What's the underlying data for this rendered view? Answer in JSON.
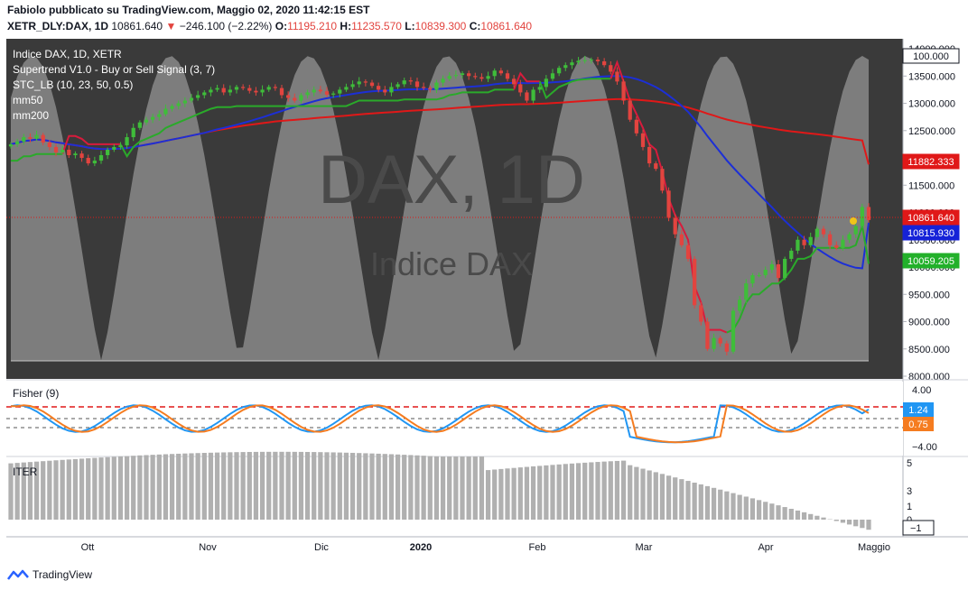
{
  "header": {
    "publish_line": "Fabiolo pubblicato su TradingView.com, Maggio 02, 2020 11:42:15 EST",
    "symbol": "XETR_DLY:DAX, 1D",
    "last": "10861.640",
    "change_arrow": "▼",
    "change": "−246.100 (−2.22%)",
    "o_label": "O:",
    "o_value": "11195.210",
    "h_label": "H:",
    "h_value": "11235.570",
    "l_label": "L:",
    "l_value": "10839.300",
    "c_label": "C:",
    "c_value": "10861.640"
  },
  "legend": {
    "title": "Indice DAX, 1D, XETR",
    "indicators": [
      "Supertrend V1.0 - Buy or Sell Signal (3, 7)",
      "STC_LB (10, 23, 50, 0.5)",
      "mm50",
      "mm200"
    ]
  },
  "watermark": {
    "big": "DAX, 1D",
    "small": "Indice DAX"
  },
  "price_axis": {
    "ticks": [
      "14000.000",
      "13500.000",
      "13000.000",
      "12500.000",
      "12000.000",
      "11500.000",
      "11000.000",
      "10500.000",
      "10000.000",
      "9500.000",
      "9000.000",
      "8500.000",
      "8000.000"
    ]
  },
  "price_badges": [
    {
      "label": "100.000",
      "color": "#ffffff",
      "text_color": "#131722"
    },
    {
      "label": "11882.333",
      "color": "#e01818",
      "text_color": "#ffffff"
    },
    {
      "label": "10861.640",
      "color": "#e01818",
      "text_color": "#ffffff"
    },
    {
      "label": "10815.930",
      "color": "#1522d8",
      "text_color": "#ffffff"
    },
    {
      "label": "10059.205",
      "color": "#22b02a",
      "text_color": "#ffffff"
    }
  ],
  "fisher": {
    "title": "Fisher (9)",
    "ticks": [
      "4.00",
      "−4.00"
    ],
    "badges": [
      {
        "label": "1.24",
        "color": "#2196f3"
      },
      {
        "label": "0.75",
        "color": "#f57c20"
      }
    ]
  },
  "iter": {
    "title": "ITER",
    "ticks": [
      "5",
      "3",
      "1",
      "0",
      "−1"
    ]
  },
  "time_axis": {
    "labels": [
      "Ott",
      "Nov",
      "Dic",
      "2020",
      "Feb",
      "Mar",
      "Apr",
      "Maggio"
    ]
  },
  "colors": {
    "up": "#26a69a",
    "up_green": "#3fbd3a",
    "down": "#e2443f",
    "mm50": "#1c2fd6",
    "mm200": "#e01818",
    "supertrend_up": "#2aaa2a",
    "supertrend_down": "#d81b3c",
    "stc_fill": "#8a8a8a",
    "pane_bg": "#3a3a3a",
    "fisher_blue": "#2196f3",
    "fisher_orange": "#f57c20"
  },
  "footer": {
    "brand": "TradingView"
  },
  "chart_data": [
    {
      "type": "candlestick",
      "title": "Indice DAX, 1D, XETR",
      "x_labels": [
        "Ott",
        "Nov",
        "Dic",
        "2020",
        "Feb",
        "Mar",
        "Apr",
        "Maggio"
      ],
      "ylim": [
        8000,
        14100
      ],
      "last_close": 10861.64,
      "closes": [
        12250,
        12300,
        12380,
        12350,
        12420,
        12280,
        12200,
        12100,
        12150,
        12050,
        12080,
        12000,
        11900,
        11950,
        12050,
        12150,
        12200,
        12230,
        12380,
        12550,
        12650,
        12700,
        12750,
        12800,
        12900,
        12950,
        13000,
        13050,
        13100,
        13150,
        13200,
        13250,
        13280,
        13200,
        13250,
        13300,
        13280,
        13230,
        13200,
        13250,
        13300,
        13280,
        13150,
        13100,
        13050,
        13150,
        13200,
        13250,
        13220,
        13160,
        13180,
        13250,
        13300,
        13350,
        13400,
        13380,
        13320,
        13250,
        13200,
        13300,
        13350,
        13420,
        13400,
        13300,
        13280,
        13250,
        13380,
        13450,
        13500,
        13520,
        13550,
        13500,
        13480,
        13450,
        13500,
        13600,
        13550,
        13450,
        13350,
        13200,
        13050,
        13250,
        13300,
        13450,
        13550,
        13650,
        13700,
        13750,
        13780,
        13790,
        13800,
        13770,
        13700,
        13580,
        13400,
        13050,
        12700,
        12450,
        12200,
        11900,
        11800,
        11400,
        10900,
        10600,
        10400,
        10150,
        9300,
        9000,
        8500,
        8700,
        8600,
        8450,
        9200,
        9400,
        9700,
        9850,
        9850,
        9950,
        10050,
        9800,
        10150,
        10300,
        10500,
        10400,
        10550,
        10700,
        10600,
        10400,
        10350,
        10500,
        10600,
        10750,
        11100,
        10861.64
      ],
      "mm50_last": 10815.93,
      "mm200_last": 11882.333,
      "supertrend_last": 10059.205
    },
    {
      "type": "line",
      "title": "Fisher (9)",
      "ylim": [
        -5,
        5
      ],
      "series": [
        {
          "name": "",
          "color": "#2196f3",
          "last": 1.24
        },
        {
          "name": "",
          "color": "#f57c20",
          "last": 0.75
        }
      ]
    },
    {
      "type": "bar",
      "title": "ITER",
      "ylim": [
        -1,
        5
      ],
      "y_ticks": [
        5,
        3,
        1,
        0,
        -1
      ]
    }
  ]
}
